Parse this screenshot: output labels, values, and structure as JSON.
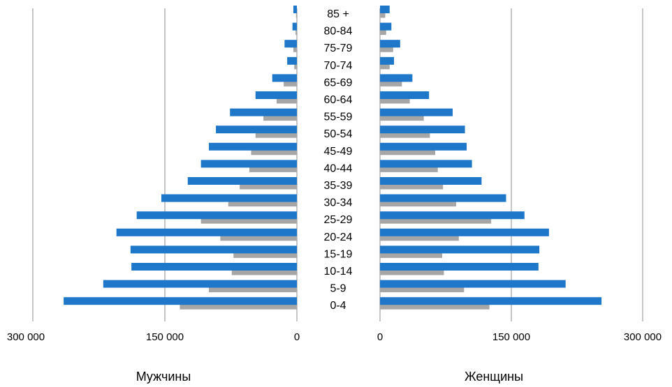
{
  "chart_data": {
    "type": "bar",
    "categories": [
      "85 +",
      "80-84",
      "75-79",
      "70-74",
      "65-69",
      "60-64",
      "55-59",
      "50-54",
      "45-49",
      "40-44",
      "35-39",
      "30-34",
      "25-29",
      "20-24",
      "15-19",
      "10-14",
      "5-9",
      "0-4"
    ],
    "panels": {
      "left": {
        "label": "Мужчины",
        "ticks": [
          "300 000",
          "150 000",
          "0"
        ],
        "xlim": [
          0,
          300000
        ],
        "series": [
          {
            "color": "#1F77C9",
            "values": [
              4000,
              5000,
              14000,
              11000,
              28000,
              47000,
              76000,
              92000,
              100000,
              109000,
              124000,
              154000,
              182000,
              205000,
              189000,
              188000,
              220000,
              265000
            ]
          },
          {
            "color": "#A6A6A6",
            "values": [
              1000,
              1500,
              4000,
              3000,
              15000,
              23000,
              38000,
              47000,
              52000,
              54000,
              65000,
              78000,
              109000,
              87000,
              72000,
              74000,
              100000,
              133000
            ]
          }
        ]
      },
      "right": {
        "label": "Женщины",
        "ticks": [
          "0",
          "150 000",
          "300 000"
        ],
        "xlim": [
          0,
          300000
        ],
        "series": [
          {
            "color": "#1F77C9",
            "values": [
              11000,
              13000,
              23000,
              16000,
              37000,
              56000,
              83000,
              97000,
              99000,
              105000,
              116000,
              144000,
              165000,
              193000,
              182000,
              181000,
              212000,
              253000
            ]
          },
          {
            "color": "#A6A6A6",
            "values": [
              6000,
              7000,
              15000,
              11000,
              25000,
              34000,
              50000,
              57000,
              63000,
              66000,
              72000,
              87000,
              127000,
              90000,
              71000,
              73000,
              96000,
              125000
            ]
          }
        ]
      }
    }
  }
}
